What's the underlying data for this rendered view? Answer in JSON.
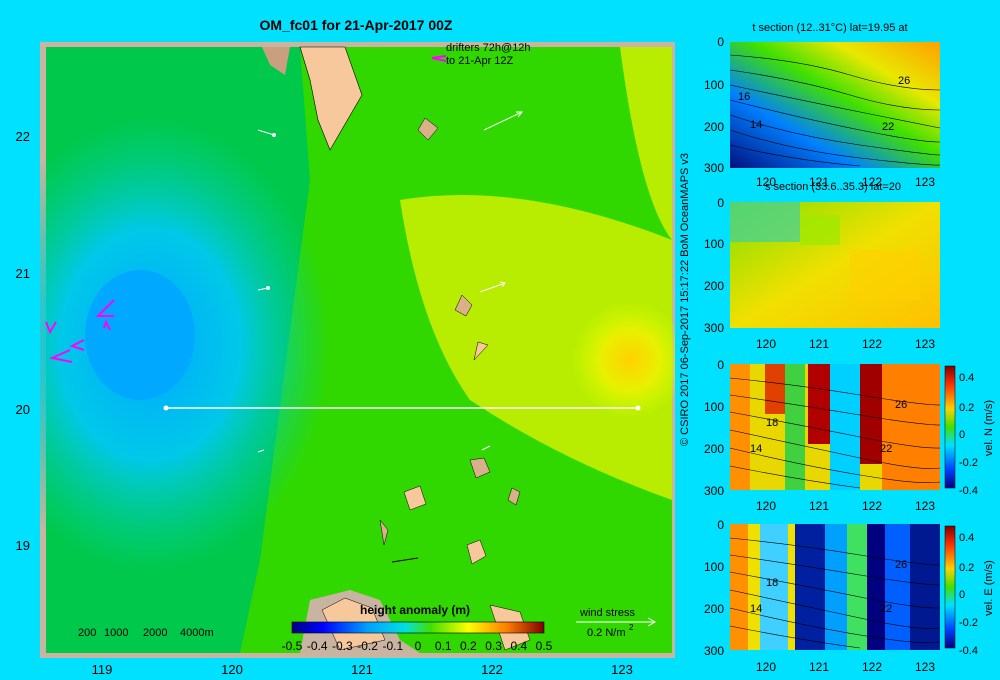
{
  "title": "OM_fc01 for 21-Apr-2017 00Z",
  "credit": "© CSIRO 2017   06-Sep-2017 15:17:22 BoM OceanMAPS v3",
  "colors": {
    "background": "#00e1ff",
    "land": "#f7c89b"
  },
  "chart_data": [
    {
      "type": "heatmap",
      "name": "map",
      "title": "OM_fc01 for 21-Apr-2017 00Z",
      "x_ticks": [
        119,
        120,
        121,
        122,
        123
      ],
      "y_ticks": [
        19,
        20,
        21,
        22
      ],
      "xlim": [
        118.5,
        123.5
      ],
      "ylim": [
        18.2,
        22.7
      ],
      "colorbar": {
        "label": "height anomaly (m)",
        "ticks": [
          -0.5,
          -0.4,
          -0.3,
          -0.2,
          -0.1,
          0,
          0.1,
          0.2,
          0.3,
          0.4,
          0.5
        ],
        "tick_labels": [
          "-0.5",
          "-0.4",
          "-0.3",
          "-0.2",
          "-0.1",
          "0",
          "0.1",
          "0.2",
          "0.3",
          "0.4",
          "0.5"
        ],
        "range": [
          -0.5,
          0.5
        ]
      },
      "depth_legend": [
        "200",
        "1000",
        "2000",
        "4000m"
      ],
      "annotations": [
        "drifters 72h@12h",
        "to 21-Apr 12Z"
      ],
      "wind_legend": {
        "label": "wind stress",
        "value": "0.2 N/m",
        "superscript": "2"
      },
      "section_line": {
        "lat": 20,
        "lon_from": 119.5,
        "lon_to": 123.1
      }
    },
    {
      "type": "heatmap",
      "name": "t-section",
      "title": "t section (12..31°C) lat=19.95 at",
      "x_ticks": [
        120,
        121,
        122,
        123
      ],
      "y_ticks": [
        0,
        100,
        200,
        300
      ],
      "ylim": [
        0,
        300
      ],
      "contour_labels": [
        "16",
        "14",
        "26",
        "22"
      ]
    },
    {
      "type": "heatmap",
      "name": "s-section",
      "title": "s section (33.6..35.3) lat=20",
      "x_ticks": [
        120,
        121,
        122,
        123
      ],
      "y_ticks": [
        0,
        100,
        200,
        300
      ],
      "ylim": [
        0,
        300
      ]
    },
    {
      "type": "heatmap",
      "name": "vel-n-section",
      "x_ticks": [
        120,
        121,
        122,
        123
      ],
      "y_ticks": [
        0,
        100,
        200,
        300
      ],
      "ylim": [
        0,
        300
      ],
      "contour_labels": [
        "26",
        "18",
        "14",
        "22"
      ],
      "colorbar": {
        "label": "vel. N (m/s)",
        "ticks": [
          "0.4",
          "0.2",
          "0",
          "-0.2",
          "-0.4"
        ],
        "range": [
          -0.4,
          0.4
        ]
      }
    },
    {
      "type": "heatmap",
      "name": "vel-e-section",
      "x_ticks": [
        120,
        121,
        122,
        123
      ],
      "y_ticks": [
        0,
        100,
        200,
        300
      ],
      "ylim": [
        0,
        300
      ],
      "contour_labels": [
        "26",
        "18",
        "14",
        "22"
      ],
      "colorbar": {
        "label": "vel. E (m/s)",
        "ticks": [
          "0.4",
          "0.2",
          "0",
          "-0.2",
          "-0.4"
        ],
        "range": [
          -0.4,
          0.4
        ]
      }
    }
  ]
}
